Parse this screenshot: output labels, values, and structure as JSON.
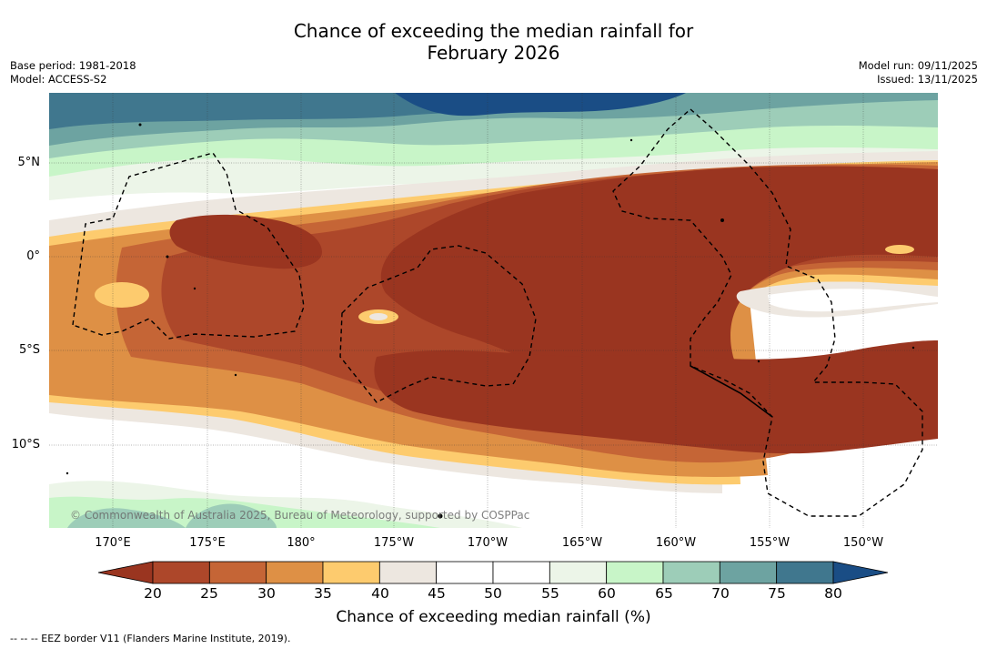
{
  "title": {
    "line1": "Chance of exceeding the median rainfall for",
    "line2": "February 2026"
  },
  "meta": {
    "base_period": "Base period: 1981-2018",
    "model": "Model: ACCESS-S2",
    "model_run": "Model run: 09/11/2025",
    "issued": "Issued: 13/11/2025"
  },
  "map": {
    "lat_labels": [
      "5°N",
      "0°",
      "5°S",
      "10°S"
    ],
    "lon_labels": [
      "170°E",
      "175°E",
      "180°",
      "175°W",
      "170°W",
      "165°W",
      "160°W",
      "155°W",
      "150°W"
    ],
    "copyright": "© Commonwealth of Australia 2025, Bureau of Meteorology, supported by COSPPac",
    "colors": {
      "c15": "#9a3520",
      "c20": "#ad472a",
      "c25": "#c56536",
      "c30": "#de9045",
      "c35": "#fdcb6e",
      "c40": "#ede7e0",
      "c45": "#ffffff",
      "c55": "#ecf5e8",
      "c60": "#c8f5c8",
      "c65": "#9dcdb8",
      "c70": "#6da3a1",
      "c75": "#40778e",
      "c80": "#1a4d85"
    }
  },
  "colorbar": {
    "ticks": [
      "20",
      "25",
      "30",
      "35",
      "40",
      "45",
      "50",
      "55",
      "60",
      "65",
      "70",
      "75",
      "80"
    ],
    "colors": [
      "#9a3520",
      "#ad472a",
      "#c56536",
      "#de9045",
      "#fdcb6e",
      "#ede7e0",
      "#ffffff",
      "#ffffff",
      "#ecf5e8",
      "#c8f5c8",
      "#9dcdb8",
      "#6da3a1",
      "#40778e",
      "#1a4d85"
    ],
    "label": "Chance of exceeding median rainfall (%)"
  },
  "footer": "--  --  -- EEZ border V11 (Flanders Marine Institute, 2019)."
}
